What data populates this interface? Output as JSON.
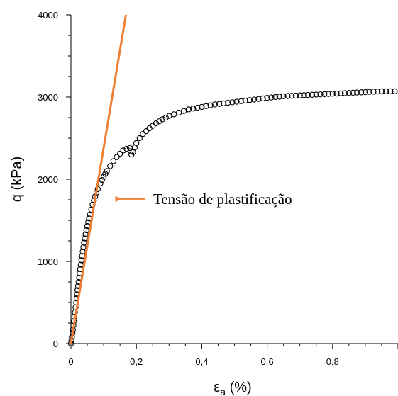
{
  "chart_data": {
    "type": "scatter",
    "ylabel": "q (kPa)",
    "xlabel": {
      "symbol": "ε",
      "subscript": "a",
      "unit": " (%)"
    },
    "xlim": [
      0,
      1.0
    ],
    "ylim": [
      0,
      4000
    ],
    "x_ticks": [
      {
        "value": 0,
        "label": "0"
      },
      {
        "value": 0.2,
        "label": "0,2"
      },
      {
        "value": 0.4,
        "label": "0,4"
      },
      {
        "value": 0.6,
        "label": "0,6"
      },
      {
        "value": 0.8,
        "label": "0,8"
      }
    ],
    "y_ticks": [
      {
        "value": 0,
        "label": "0"
      },
      {
        "value": 1000,
        "label": "1000"
      },
      {
        "value": 2000,
        "label": "2000"
      },
      {
        "value": 3000,
        "label": "3000"
      },
      {
        "value": 4000,
        "label": "4000"
      }
    ],
    "grid": false,
    "series": [
      {
        "marker": "open-circle",
        "color": "#000000",
        "x": [
          0,
          0.003,
          0.006,
          0.009,
          0.012,
          0.016,
          0.02,
          0.025,
          0.03,
          0.036,
          0.042,
          0.05,
          0.058,
          0.066,
          0.074,
          0.082,
          0.09,
          0.1,
          0.11,
          0.12,
          0.13,
          0.14,
          0.15,
          0.16,
          0.17,
          0.18,
          0.185,
          0.19,
          0.2,
          0.21,
          0.22,
          0.24,
          0.26,
          0.28,
          0.3,
          0.33,
          0.36,
          0.4,
          0.44,
          0.48,
          0.52,
          0.56,
          0.6,
          0.65,
          0.7,
          0.75,
          0.8,
          0.85,
          0.9,
          0.95,
          0.99
        ],
        "y": [
          0,
          80,
          170,
          270,
          380,
          500,
          650,
          800,
          960,
          1120,
          1280,
          1430,
          1570,
          1690,
          1790,
          1880,
          1950,
          2030,
          2100,
          2160,
          2220,
          2270,
          2310,
          2350,
          2370,
          2380,
          2300,
          2330,
          2440,
          2500,
          2550,
          2620,
          2680,
          2730,
          2770,
          2810,
          2850,
          2880,
          2910,
          2930,
          2950,
          2970,
          2990,
          3010,
          3020,
          3030,
          3040,
          3050,
          3060,
          3070,
          3070
        ]
      },
      {
        "type": "line",
        "color": "#ef7f33",
        "x": [
          0,
          0.168
        ],
        "y": [
          0,
          4000
        ]
      }
    ],
    "annotations": [
      {
        "text": "Tensão de plastificação",
        "arrow_to": {
          "x": 0.12,
          "y": 1760
        },
        "arrow_color": "#ef7f33"
      }
    ]
  }
}
